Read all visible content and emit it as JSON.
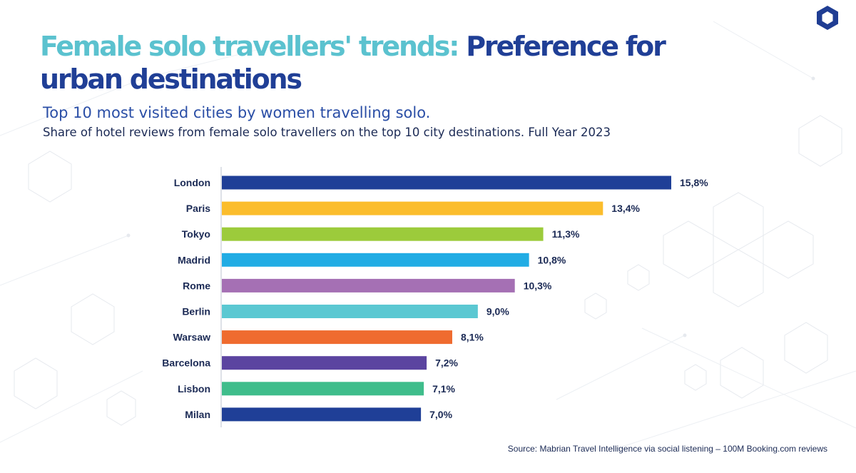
{
  "header": {
    "title_part1": "Female solo travellers' trends:",
    "title_part2": "Preference for urban destinations",
    "subtitle": "Top 10 most visited cities by women travelling solo.",
    "subtitle2": "Share of hotel reviews from female solo travellers on the top 10 city destinations. Full Year 2023"
  },
  "footer": {
    "source": "Source: Mabrian Travel Intelligence via social listening – 100M Booking.com reviews"
  },
  "logo": {
    "icon": "hexagon-logo-icon",
    "color": "#1f3d93"
  },
  "chart_data": {
    "type": "bar",
    "orientation": "horizontal",
    "categories": [
      "London",
      "Paris",
      "Tokyo",
      "Madrid",
      "Rome",
      "Berlin",
      "Warsaw",
      "Barcelona",
      "Lisbon",
      "Milan"
    ],
    "values": [
      15.8,
      13.4,
      11.3,
      10.8,
      10.3,
      9.0,
      8.1,
      7.2,
      7.1,
      7.0
    ],
    "value_labels": [
      "15,8%",
      "13,4%",
      "11,3%",
      "10,8%",
      "10,3%",
      "9,0%",
      "8,1%",
      "7,2%",
      "7,1%",
      "7,0%"
    ],
    "colors": [
      "#1f3f97",
      "#fbbd2c",
      "#9ccb3b",
      "#21ace4",
      "#a570b4",
      "#5bc8d2",
      "#ef6b2f",
      "#5b44a0",
      "#3fbd8b",
      "#1f3f97"
    ],
    "xlim": [
      0,
      15.8
    ],
    "grid": false,
    "legend": "none"
  }
}
